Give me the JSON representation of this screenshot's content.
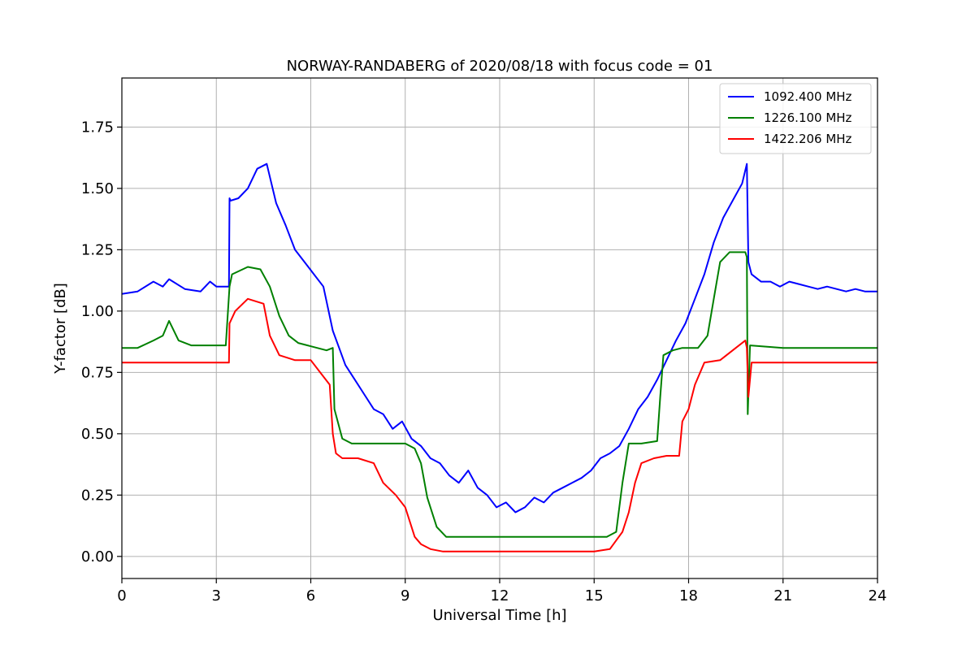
{
  "chart_data": {
    "type": "line",
    "title": "NORWAY-RANDABERG of 2020/08/18 with focus code = 01",
    "xlabel": "Universal Time [h]",
    "ylabel": "Y-factor [dB]",
    "xlim": [
      0,
      24
    ],
    "ylim": [
      -0.09,
      1.95
    ],
    "xticks": [
      0,
      3,
      6,
      9,
      12,
      15,
      18,
      21,
      24
    ],
    "xtick_labels": [
      "0",
      "3",
      "6",
      "9",
      "12",
      "15",
      "18",
      "21",
      "24"
    ],
    "yticks": [
      0.0,
      0.25,
      0.5,
      0.75,
      1.0,
      1.25,
      1.5,
      1.75
    ],
    "ytick_labels": [
      "0.00",
      "0.25",
      "0.50",
      "0.75",
      "1.00",
      "1.25",
      "1.50",
      "1.75"
    ],
    "grid": true,
    "legend_position": "top-right",
    "series": [
      {
        "name": "1092.400 MHz",
        "color": "#0000ff",
        "x": [
          0,
          0.5,
          1.0,
          1.3,
          1.5,
          2.0,
          2.5,
          2.8,
          3.0,
          3.4,
          3.42,
          3.45,
          3.7,
          4.0,
          4.3,
          4.6,
          4.9,
          5.2,
          5.5,
          5.8,
          6.1,
          6.4,
          6.7,
          6.9,
          7.1,
          7.4,
          7.7,
          8.0,
          8.3,
          8.6,
          8.9,
          9.2,
          9.5,
          9.8,
          10.1,
          10.4,
          10.7,
          11.0,
          11.3,
          11.6,
          11.9,
          12.2,
          12.5,
          12.8,
          13.1,
          13.4,
          13.7,
          14.0,
          14.3,
          14.6,
          14.9,
          15.2,
          15.5,
          15.8,
          16.1,
          16.4,
          16.7,
          17.0,
          17.3,
          17.6,
          17.9,
          18.2,
          18.5,
          18.8,
          19.1,
          19.4,
          19.7,
          19.85,
          19.9,
          20.0,
          20.3,
          20.6,
          20.9,
          21.2,
          21.5,
          21.8,
          22.1,
          22.4,
          22.7,
          23.0,
          23.3,
          23.6,
          24.0
        ],
        "y": [
          1.07,
          1.08,
          1.12,
          1.1,
          1.13,
          1.09,
          1.08,
          1.12,
          1.1,
          1.1,
          1.46,
          1.45,
          1.46,
          1.5,
          1.58,
          1.6,
          1.44,
          1.35,
          1.25,
          1.2,
          1.15,
          1.1,
          0.92,
          0.85,
          0.78,
          0.72,
          0.66,
          0.6,
          0.58,
          0.52,
          0.55,
          0.48,
          0.45,
          0.4,
          0.38,
          0.33,
          0.3,
          0.35,
          0.28,
          0.25,
          0.2,
          0.22,
          0.18,
          0.2,
          0.24,
          0.22,
          0.26,
          0.28,
          0.3,
          0.32,
          0.35,
          0.4,
          0.42,
          0.45,
          0.52,
          0.6,
          0.65,
          0.72,
          0.8,
          0.88,
          0.95,
          1.05,
          1.15,
          1.28,
          1.38,
          1.45,
          1.52,
          1.6,
          1.2,
          1.15,
          1.12,
          1.12,
          1.1,
          1.12,
          1.11,
          1.1,
          1.09,
          1.1,
          1.09,
          1.08,
          1.09,
          1.08,
          1.08
        ]
      },
      {
        "name": "1226.100 MHz",
        "color": "#008000",
        "x": [
          0,
          0.5,
          1.0,
          1.3,
          1.5,
          1.8,
          2.2,
          2.8,
          3.3,
          3.42,
          3.5,
          4.0,
          4.4,
          4.7,
          5.0,
          5.3,
          5.6,
          5.9,
          6.2,
          6.5,
          6.7,
          6.75,
          7.0,
          7.3,
          7.6,
          8.0,
          8.5,
          9.0,
          9.3,
          9.5,
          9.7,
          10.0,
          10.3,
          10.7,
          11.0,
          12.0,
          13.0,
          14.0,
          15.0,
          15.4,
          15.7,
          15.9,
          16.1,
          16.5,
          17.0,
          17.1,
          17.2,
          17.5,
          17.8,
          18.0,
          18.3,
          18.6,
          18.8,
          19.0,
          19.3,
          19.8,
          19.85,
          19.88,
          19.95,
          21.0,
          22.0,
          23.0,
          24.0
        ],
        "y": [
          0.85,
          0.85,
          0.88,
          0.9,
          0.96,
          0.88,
          0.86,
          0.86,
          0.86,
          1.1,
          1.15,
          1.18,
          1.17,
          1.1,
          0.98,
          0.9,
          0.87,
          0.86,
          0.85,
          0.84,
          0.85,
          0.6,
          0.48,
          0.46,
          0.46,
          0.46,
          0.46,
          0.46,
          0.44,
          0.38,
          0.24,
          0.12,
          0.08,
          0.08,
          0.08,
          0.08,
          0.08,
          0.08,
          0.08,
          0.08,
          0.1,
          0.3,
          0.46,
          0.46,
          0.47,
          0.65,
          0.82,
          0.84,
          0.85,
          0.85,
          0.85,
          0.9,
          1.05,
          1.2,
          1.24,
          1.24,
          1.22,
          0.58,
          0.86,
          0.85,
          0.85,
          0.85,
          0.85
        ]
      },
      {
        "name": "1422.206 MHz",
        "color": "#ff0000",
        "x": [
          0,
          1.0,
          2.0,
          3.0,
          3.4,
          3.42,
          3.6,
          4.0,
          4.5,
          4.7,
          5.0,
          5.5,
          6.0,
          6.3,
          6.6,
          6.7,
          6.8,
          7.0,
          7.5,
          8.0,
          8.3,
          8.7,
          9.0,
          9.3,
          9.5,
          9.8,
          10.2,
          11.0,
          12.0,
          13.0,
          14.0,
          15.0,
          15.5,
          15.9,
          16.1,
          16.3,
          16.5,
          16.9,
          17.3,
          17.7,
          17.8,
          18.0,
          18.2,
          18.5,
          19.0,
          19.5,
          19.8,
          19.85,
          19.9,
          20.0,
          21.0,
          22.0,
          23.0,
          24.0
        ],
        "y": [
          0.79,
          0.79,
          0.79,
          0.79,
          0.79,
          0.95,
          1.0,
          1.05,
          1.03,
          0.9,
          0.82,
          0.8,
          0.8,
          0.75,
          0.7,
          0.5,
          0.42,
          0.4,
          0.4,
          0.38,
          0.3,
          0.25,
          0.2,
          0.08,
          0.05,
          0.03,
          0.02,
          0.02,
          0.02,
          0.02,
          0.02,
          0.02,
          0.03,
          0.1,
          0.18,
          0.3,
          0.38,
          0.4,
          0.41,
          0.41,
          0.55,
          0.6,
          0.7,
          0.79,
          0.8,
          0.85,
          0.88,
          0.85,
          0.65,
          0.79,
          0.79,
          0.79,
          0.79,
          0.79
        ]
      }
    ]
  }
}
